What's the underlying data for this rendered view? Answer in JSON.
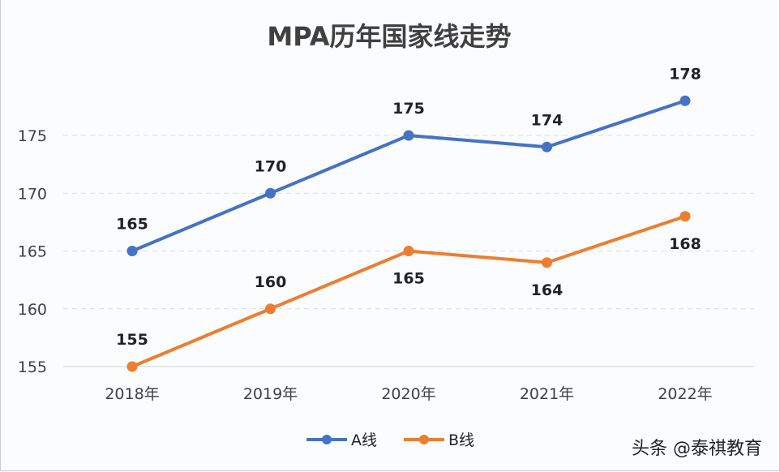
{
  "chart_data": {
    "type": "line",
    "title": "MPA历年国家线走势",
    "categories": [
      "2018年",
      "2019年",
      "2020年",
      "2021年",
      "2022年"
    ],
    "series": [
      {
        "name": "A线",
        "values": [
          165,
          170,
          175,
          174,
          178
        ],
        "color": "#4472c4"
      },
      {
        "name": "B线",
        "values": [
          155,
          160,
          165,
          164,
          168
        ],
        "color": "#ed7d31"
      }
    ],
    "yticks": [
      155,
      160,
      165,
      170,
      175
    ],
    "ylim": [
      155,
      178
    ],
    "grid": true,
    "legend": "bottom",
    "xlabel": "",
    "ylabel": ""
  },
  "watermark": "头条 @泰祺教育"
}
